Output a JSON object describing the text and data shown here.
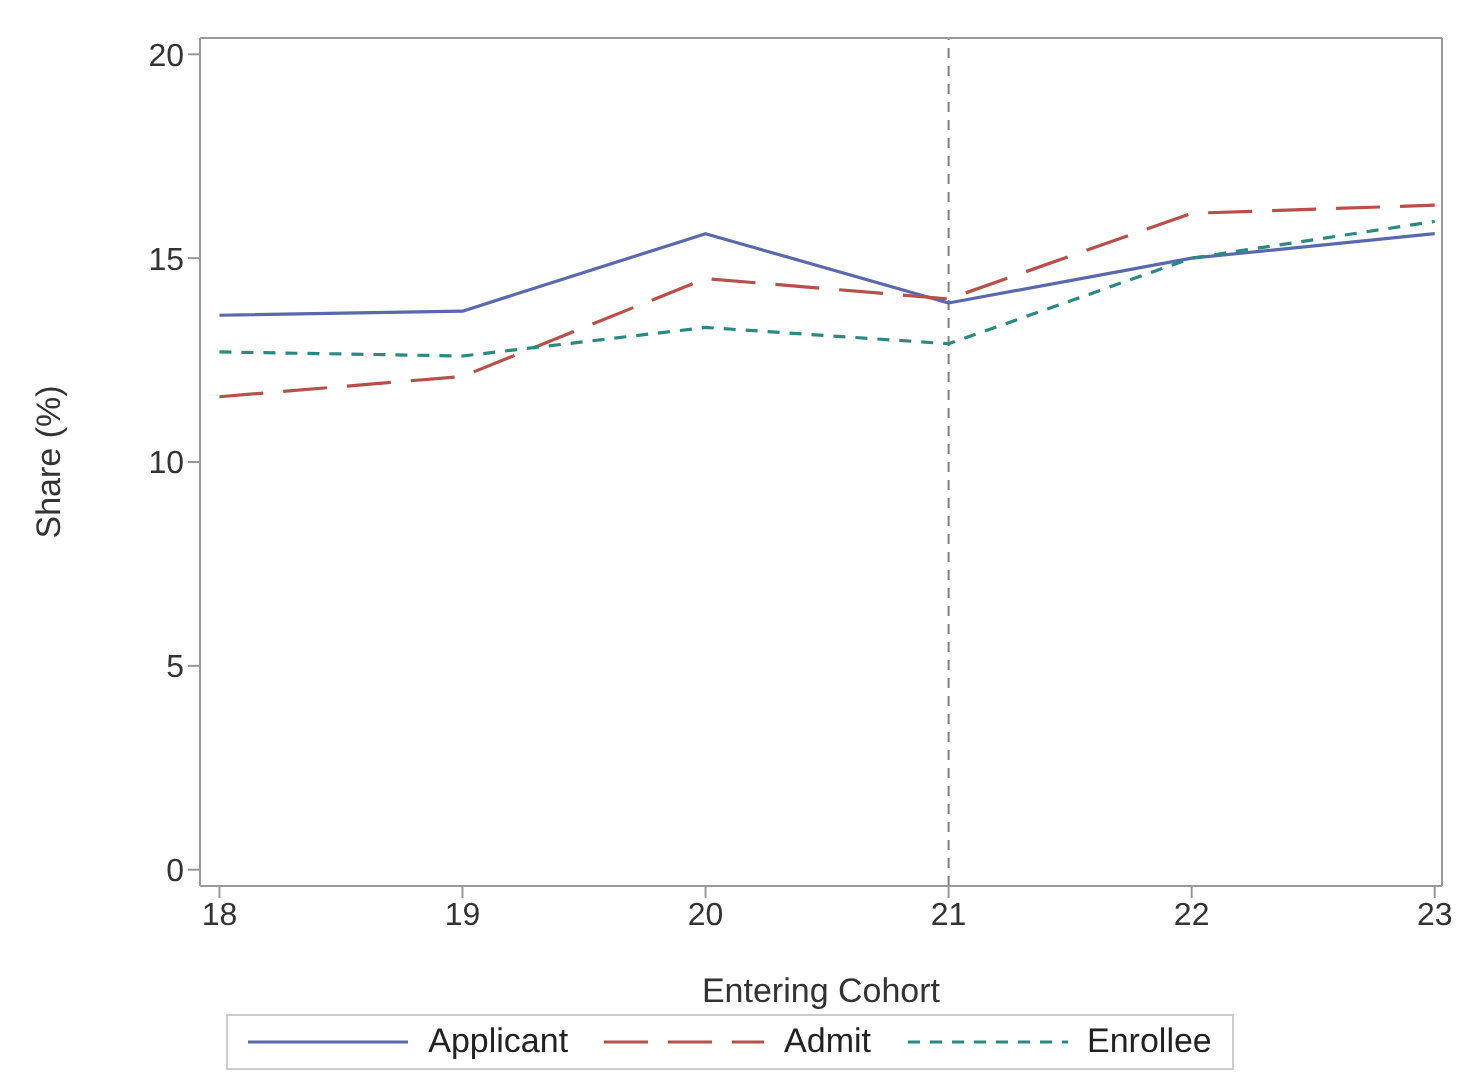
{
  "chart_data": {
    "type": "line",
    "xlabel": "Entering Cohort",
    "ylabel": "Share (%)",
    "x": [
      18,
      19,
      20,
      21,
      22,
      23
    ],
    "series": [
      {
        "name": "Applicant",
        "color": "#5a68ad",
        "line_style": "solid",
        "values": [
          13.6,
          13.7,
          15.6,
          13.9,
          15.0,
          15.6
        ]
      },
      {
        "name": "Admit",
        "color": "#b8504a",
        "line_style": "dashed",
        "values": [
          11.6,
          12.1,
          14.5,
          14.0,
          16.1,
          16.3
        ]
      },
      {
        "name": "Enrollee",
        "color": "#2a8a82",
        "line_style": "dotted",
        "values": [
          12.7,
          12.6,
          13.3,
          12.9,
          15.0,
          15.9
        ]
      }
    ],
    "xlim": [
      17.92,
      23.03
    ],
    "xticks": [
      18,
      19,
      20,
      21,
      22,
      23
    ],
    "ylim": [
      -0.4,
      20.4
    ],
    "yticks": [
      0,
      5,
      10,
      15,
      20
    ],
    "ref_lines": [
      {
        "axis": "x",
        "value": 21,
        "color": "#808080",
        "line_style": "dashed"
      }
    ],
    "grid": false,
    "legend": "bottom",
    "marker": "none"
  }
}
